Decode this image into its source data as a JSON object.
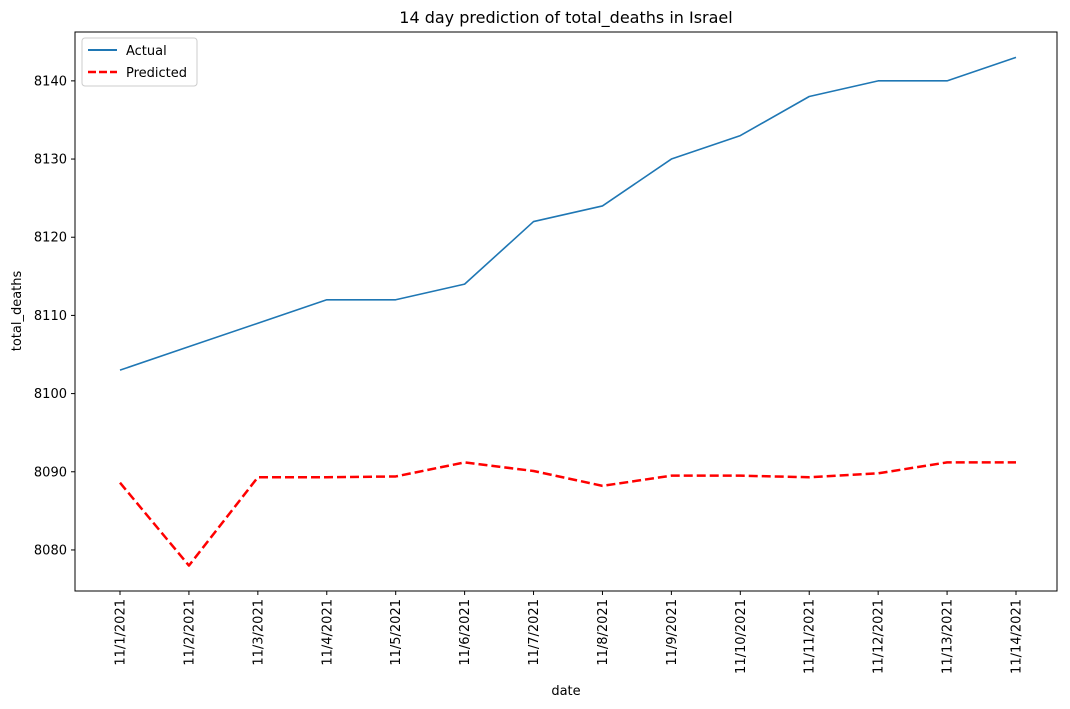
{
  "chart_data": {
    "type": "line",
    "title": "14 day prediction of total_deaths in Israel",
    "xlabel": "date",
    "ylabel": "total_deaths",
    "x": [
      "11/1/2021",
      "11/2/2021",
      "11/3/2021",
      "11/4/2021",
      "11/5/2021",
      "11/6/2021",
      "11/7/2021",
      "11/8/2021",
      "11/9/2021",
      "11/10/2021",
      "11/11/2021",
      "11/12/2021",
      "11/13/2021",
      "11/14/2021"
    ],
    "series": [
      {
        "name": "Actual",
        "color": "#1f77b4",
        "style": "solid",
        "values": [
          8103,
          8106,
          8109,
          8112,
          8112,
          8114,
          8122,
          8124,
          8130,
          8133,
          8138,
          8140,
          8140,
          8143
        ]
      },
      {
        "name": "Predicted",
        "color": "#ff0000",
        "style": "dashed",
        "values": [
          8088.6,
          8078.0,
          8089.3,
          8089.3,
          8089.4,
          8091.2,
          8090.1,
          8088.2,
          8089.5,
          8089.5,
          8089.3,
          8089.8,
          8091.2,
          8091.2
        ]
      }
    ],
    "yticks": [
      8080,
      8090,
      8100,
      8110,
      8120,
      8130,
      8140
    ],
    "ylim": [
      8074.75,
      8146.25
    ],
    "grid": false,
    "legend_position": "top-left"
  }
}
